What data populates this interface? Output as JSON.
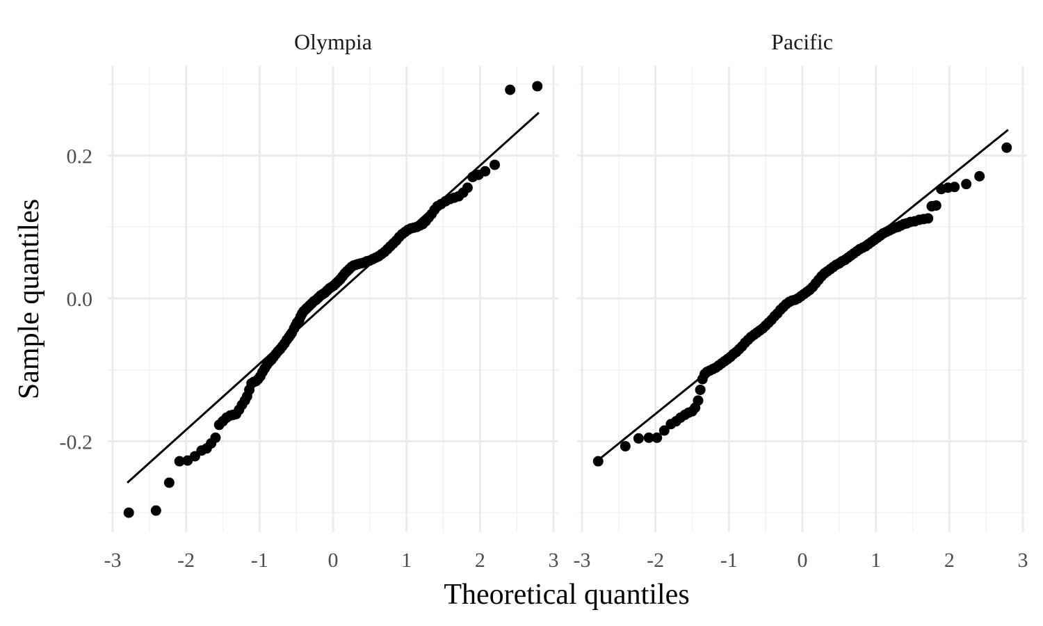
{
  "chart_data": {
    "type": "scatter",
    "subtype": "qq-plot",
    "xlabel": "Theoretical quantiles",
    "ylabel": "Sample quantiles",
    "xlim": [
      -3,
      3
    ],
    "ylim": [
      -0.3,
      0.3
    ],
    "x_ticks": [
      "-3",
      "-2",
      "-1",
      "0",
      "1",
      "2",
      "3"
    ],
    "y_ticks": [
      "-0.2",
      "0.0",
      "0.2"
    ],
    "grid": true,
    "colors": {
      "points": "#000000",
      "line": "#000000",
      "grid": "#ebebeb"
    },
    "facets": [
      {
        "label": "Olympia",
        "reference_line": {
          "x": [
            -2.8,
            2.8
          ],
          "y": [
            -0.258,
            0.26
          ]
        },
        "points": [
          [
            -2.78,
            -0.3
          ],
          [
            -2.41,
            -0.297
          ],
          [
            -2.23,
            -0.258
          ],
          [
            -2.09,
            -0.228
          ],
          [
            -1.98,
            -0.227
          ],
          [
            -1.88,
            -0.221
          ],
          [
            -1.79,
            -0.213
          ],
          [
            -1.72,
            -0.21
          ],
          [
            -1.66,
            -0.203
          ],
          [
            -1.6,
            -0.195
          ],
          [
            -1.55,
            -0.177
          ],
          [
            -1.5,
            -0.172
          ],
          [
            -1.45,
            -0.167
          ],
          [
            -1.4,
            -0.164
          ],
          [
            -1.36,
            -0.163
          ],
          [
            -1.32,
            -0.162
          ],
          [
            -1.28,
            -0.156
          ],
          [
            -1.24,
            -0.149
          ],
          [
            -1.2,
            -0.143
          ],
          [
            -1.17,
            -0.137
          ],
          [
            -1.14,
            -0.128
          ],
          [
            -1.11,
            -0.119
          ],
          [
            -1.08,
            -0.117
          ],
          [
            -1.05,
            -0.116
          ],
          [
            -1.02,
            -0.113
          ],
          [
            -0.99,
            -0.109
          ],
          [
            -0.96,
            -0.103
          ],
          [
            -0.93,
            -0.098
          ],
          [
            -0.9,
            -0.093
          ],
          [
            -0.87,
            -0.089
          ],
          [
            -0.84,
            -0.086
          ],
          [
            -0.81,
            -0.082
          ],
          [
            -0.78,
            -0.078
          ],
          [
            -0.75,
            -0.074
          ],
          [
            -0.72,
            -0.071
          ],
          [
            -0.69,
            -0.067
          ],
          [
            -0.66,
            -0.063
          ],
          [
            -0.63,
            -0.058
          ],
          [
            -0.6,
            -0.054
          ],
          [
            -0.58,
            -0.051
          ],
          [
            -0.56,
            -0.048
          ],
          [
            -0.53,
            -0.042
          ],
          [
            -0.51,
            -0.038
          ],
          [
            -0.49,
            -0.034
          ],
          [
            -0.46,
            -0.03
          ],
          [
            -0.44,
            -0.025
          ],
          [
            -0.42,
            -0.021
          ],
          [
            -0.4,
            -0.018
          ],
          [
            -0.37,
            -0.015
          ],
          [
            -0.35,
            -0.013
          ],
          [
            -0.32,
            -0.01
          ],
          [
            -0.29,
            -0.007
          ],
          [
            -0.26,
            -0.004
          ],
          [
            -0.23,
            -0.002
          ],
          [
            -0.2,
            0.001
          ],
          [
            -0.17,
            0.004
          ],
          [
            -0.14,
            0.006
          ],
          [
            -0.11,
            0.008
          ],
          [
            -0.08,
            0.011
          ],
          [
            -0.05,
            0.014
          ],
          [
            -0.02,
            0.016
          ],
          [
            0.01,
            0.018
          ],
          [
            0.04,
            0.021
          ],
          [
            0.07,
            0.024
          ],
          [
            0.1,
            0.027
          ],
          [
            0.13,
            0.031
          ],
          [
            0.16,
            0.035
          ],
          [
            0.19,
            0.038
          ],
          [
            0.22,
            0.041
          ],
          [
            0.25,
            0.044
          ],
          [
            0.28,
            0.046
          ],
          [
            0.31,
            0.047
          ],
          [
            0.34,
            0.048
          ],
          [
            0.38,
            0.049
          ],
          [
            0.42,
            0.05
          ],
          [
            0.46,
            0.052
          ],
          [
            0.5,
            0.053
          ],
          [
            0.54,
            0.055
          ],
          [
            0.58,
            0.057
          ],
          [
            0.62,
            0.059
          ],
          [
            0.66,
            0.062
          ],
          [
            0.7,
            0.065
          ],
          [
            0.74,
            0.069
          ],
          [
            0.78,
            0.073
          ],
          [
            0.82,
            0.077
          ],
          [
            0.86,
            0.081
          ],
          [
            0.9,
            0.086
          ],
          [
            0.94,
            0.09
          ],
          [
            0.98,
            0.093
          ],
          [
            1.02,
            0.096
          ],
          [
            1.06,
            0.098
          ],
          [
            1.1,
            0.099
          ],
          [
            1.14,
            0.1
          ],
          [
            1.18,
            0.102
          ],
          [
            1.22,
            0.104
          ],
          [
            1.26,
            0.108
          ],
          [
            1.3,
            0.113
          ],
          [
            1.34,
            0.118
          ],
          [
            1.38,
            0.124
          ],
          [
            1.42,
            0.129
          ],
          [
            1.47,
            0.132
          ],
          [
            1.53,
            0.136
          ],
          [
            1.59,
            0.139
          ],
          [
            1.65,
            0.141
          ],
          [
            1.71,
            0.143
          ],
          [
            1.77,
            0.148
          ],
          [
            1.83,
            0.155
          ],
          [
            1.9,
            0.17
          ],
          [
            1.98,
            0.173
          ],
          [
            2.07,
            0.178
          ],
          [
            2.2,
            0.187
          ],
          [
            2.41,
            0.292
          ],
          [
            2.78,
            0.297
          ]
        ]
      },
      {
        "label": "Pacific",
        "reference_line": {
          "x": [
            -2.8,
            2.8
          ],
          "y": [
            -0.228,
            0.236
          ]
        },
        "points": [
          [
            -2.78,
            -0.228
          ],
          [
            -2.41,
            -0.207
          ],
          [
            -2.23,
            -0.196
          ],
          [
            -2.09,
            -0.195
          ],
          [
            -1.98,
            -0.195
          ],
          [
            -1.88,
            -0.185
          ],
          [
            -1.79,
            -0.176
          ],
          [
            -1.72,
            -0.172
          ],
          [
            -1.66,
            -0.167
          ],
          [
            -1.6,
            -0.163
          ],
          [
            -1.55,
            -0.16
          ],
          [
            -1.5,
            -0.158
          ],
          [
            -1.46,
            -0.153
          ],
          [
            -1.42,
            -0.143
          ],
          [
            -1.39,
            -0.128
          ],
          [
            -1.36,
            -0.113
          ],
          [
            -1.33,
            -0.106
          ],
          [
            -1.3,
            -0.103
          ],
          [
            -1.26,
            -0.101
          ],
          [
            -1.22,
            -0.099
          ],
          [
            -1.18,
            -0.097
          ],
          [
            -1.14,
            -0.094
          ],
          [
            -1.1,
            -0.091
          ],
          [
            -1.06,
            -0.088
          ],
          [
            -1.02,
            -0.085
          ],
          [
            -0.98,
            -0.082
          ],
          [
            -0.94,
            -0.078
          ],
          [
            -0.9,
            -0.075
          ],
          [
            -0.86,
            -0.071
          ],
          [
            -0.82,
            -0.067
          ],
          [
            -0.78,
            -0.062
          ],
          [
            -0.74,
            -0.058
          ],
          [
            -0.7,
            -0.054
          ],
          [
            -0.66,
            -0.051
          ],
          [
            -0.62,
            -0.048
          ],
          [
            -0.58,
            -0.045
          ],
          [
            -0.54,
            -0.042
          ],
          [
            -0.5,
            -0.038
          ],
          [
            -0.46,
            -0.034
          ],
          [
            -0.42,
            -0.03
          ],
          [
            -0.38,
            -0.025
          ],
          [
            -0.34,
            -0.021
          ],
          [
            -0.3,
            -0.016
          ],
          [
            -0.26,
            -0.012
          ],
          [
            -0.22,
            -0.008
          ],
          [
            -0.18,
            -0.005
          ],
          [
            -0.14,
            -0.003
          ],
          [
            -0.1,
            -0.002
          ],
          [
            -0.06,
            0.0
          ],
          [
            -0.02,
            0.003
          ],
          [
            0.02,
            0.006
          ],
          [
            0.06,
            0.009
          ],
          [
            0.1,
            0.012
          ],
          [
            0.14,
            0.016
          ],
          [
            0.18,
            0.021
          ],
          [
            0.22,
            0.026
          ],
          [
            0.26,
            0.031
          ],
          [
            0.3,
            0.035
          ],
          [
            0.34,
            0.038
          ],
          [
            0.38,
            0.041
          ],
          [
            0.42,
            0.044
          ],
          [
            0.46,
            0.047
          ],
          [
            0.5,
            0.049
          ],
          [
            0.54,
            0.052
          ],
          [
            0.58,
            0.054
          ],
          [
            0.62,
            0.057
          ],
          [
            0.66,
            0.06
          ],
          [
            0.7,
            0.063
          ],
          [
            0.74,
            0.066
          ],
          [
            0.78,
            0.069
          ],
          [
            0.82,
            0.071
          ],
          [
            0.86,
            0.073
          ],
          [
            0.9,
            0.076
          ],
          [
            0.94,
            0.079
          ],
          [
            0.98,
            0.082
          ],
          [
            1.02,
            0.085
          ],
          [
            1.06,
            0.088
          ],
          [
            1.1,
            0.091
          ],
          [
            1.14,
            0.093
          ],
          [
            1.18,
            0.095
          ],
          [
            1.22,
            0.097
          ],
          [
            1.26,
            0.099
          ],
          [
            1.3,
            0.1
          ],
          [
            1.34,
            0.102
          ],
          [
            1.38,
            0.104
          ],
          [
            1.42,
            0.105
          ],
          [
            1.47,
            0.107
          ],
          [
            1.53,
            0.108
          ],
          [
            1.59,
            0.11
          ],
          [
            1.65,
            0.111
          ],
          [
            1.71,
            0.112
          ],
          [
            1.76,
            0.129
          ],
          [
            1.82,
            0.13
          ],
          [
            1.89,
            0.153
          ],
          [
            1.98,
            0.155
          ],
          [
            2.07,
            0.156
          ],
          [
            2.23,
            0.16
          ],
          [
            2.41,
            0.171
          ],
          [
            2.78,
            0.211
          ]
        ]
      }
    ]
  }
}
